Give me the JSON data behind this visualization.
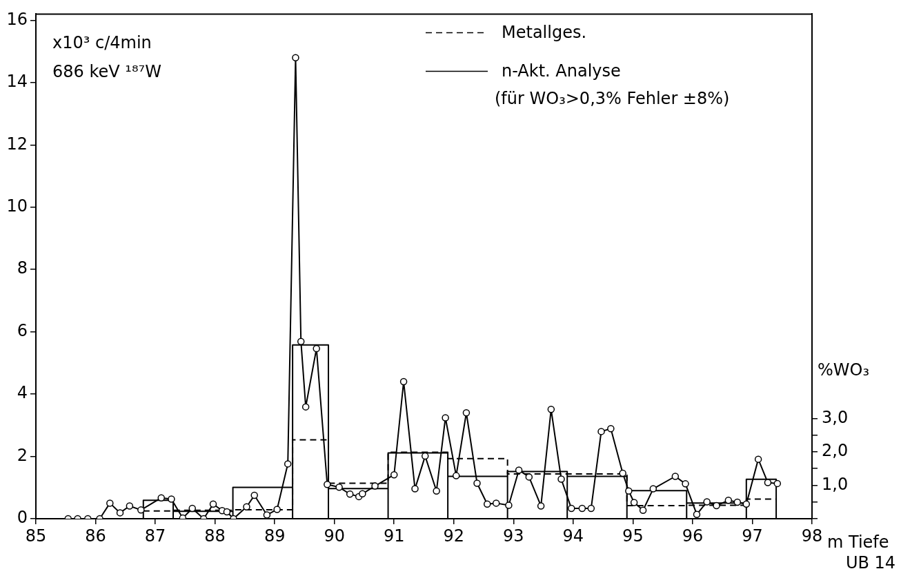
{
  "chart_data": {
    "type": "line",
    "ylabel": "x10³ c/4min",
    "xlabel": "m Tiefe",
    "y2label": "%WO₃",
    "annotations": [
      "686 keV ¹⁸⁷W",
      "(für WO₃>0,3% Fehler ±8%)",
      "UB 14"
    ],
    "xlim": [
      85,
      98
    ],
    "xticks": [
      85,
      86,
      87,
      88,
      89,
      90,
      91,
      92,
      93,
      94,
      95,
      96,
      97,
      98
    ],
    "ylim": [
      0,
      16.2
    ],
    "yticks": [
      0,
      2,
      4,
      6,
      8,
      10,
      12,
      14,
      16
    ],
    "y2lim": [
      0,
      15.1
    ],
    "y2ticks": [
      {
        "value": 0,
        "label": null
      },
      {
        "value": 0.5,
        "label": null
      },
      {
        "value": 1,
        "label": "1,0"
      },
      {
        "value": 1.5,
        "label": null
      },
      {
        "value": 2,
        "label": "2,0"
      },
      {
        "value": 2.5,
        "label": null
      },
      {
        "value": 3,
        "label": "3,0"
      }
    ],
    "grid": false,
    "legend": "top right",
    "series": [
      {
        "color": "#000000",
        "marker": "circle",
        "line_style": "solid",
        "axis": "y",
        "x": [
          85.54,
          85.7,
          85.87,
          86.07,
          86.24,
          86.41,
          86.57,
          86.76,
          87.1,
          87.27,
          87.46,
          87.62,
          87.81,
          87.97,
          88.12,
          88.2,
          88.31,
          88.53,
          88.66,
          88.87,
          89.04,
          89.22,
          89.35,
          89.44,
          89.52,
          89.7,
          89.88,
          90.08,
          90.26,
          90.41,
          90.47,
          90.68,
          91.0,
          91.16,
          91.35,
          91.52,
          91.71,
          91.86,
          92.04,
          92.21,
          92.39,
          92.56,
          92.71,
          92.92,
          93.09,
          93.26,
          93.46,
          93.63,
          93.8,
          93.97,
          94.15,
          94.3,
          94.47,
          94.63,
          94.83,
          94.93,
          95.02,
          95.17,
          95.34,
          95.71,
          95.88,
          96.07,
          96.24,
          96.4,
          96.6,
          96.75,
          96.9,
          97.1,
          97.26,
          97.42
        ],
        "values": [
          0,
          0,
          0,
          0,
          0.5,
          0.19,
          0.41,
          0.28,
          0.67,
          0.63,
          0.02,
          0.33,
          0,
          0.47,
          0.26,
          0.22,
          0,
          0.38,
          0.75,
          0.12,
          0.3,
          1.76,
          14.8,
          5.69,
          3.59,
          5.46,
          1.1,
          1.01,
          0.79,
          0.71,
          0.8,
          1.05,
          1.41,
          4.4,
          0.96,
          2.01,
          0.89,
          3.24,
          1.38,
          3.4,
          1.14,
          0.47,
          0.5,
          0.43,
          1.56,
          1.34,
          0.41,
          3.51,
          1.27,
          0.33,
          0.33,
          0.33,
          2.8,
          2.89,
          1.46,
          0.89,
          0.52,
          0.27,
          0.96,
          1.36,
          1.12,
          0.14,
          0.54,
          0.42,
          0.59,
          0.53,
          0.47,
          1.91,
          1.16,
          1.13
        ]
      },
      {
        "type": "step",
        "name": "Metallges.",
        "color": "#000000",
        "marker": "none",
        "line_style": "dashed",
        "axis": "y2",
        "x": [
          86.8,
          87.3,
          88.3,
          89.3,
          89.9,
          90.9,
          91.9,
          92.9,
          93.9,
          94.9,
          95.9,
          96.9,
          97.4
        ],
        "values": [
          0.23,
          0.25,
          0.27,
          2.36,
          1.06,
          1.99,
          1.8,
          1.34,
          1.34,
          0.39,
          0.4,
          0.59,
          0.59
        ]
      },
      {
        "name": "n-Akt. Analyse",
        "color": "#000000",
        "marker": "none",
        "line_style": "solid",
        "axis": "y2",
        "x": [
          86.8,
          86.8,
          87.3,
          87.3,
          87.3,
          88.3,
          88.3,
          88.3,
          89.3,
          89.3,
          89.3,
          89.9,
          89.9,
          89.9,
          90.9,
          90.9,
          90.9,
          91.9,
          91.9,
          91.9,
          92.9,
          92.9,
          92.9,
          93.9,
          93.9,
          93.9,
          94.9,
          94.9,
          94.9,
          95.9,
          95.9,
          95.9,
          96.9,
          96.9,
          96.9,
          97.4,
          97.4
        ],
        "values": [
          0,
          0.55,
          0.55,
          0,
          0.22,
          0.22,
          0,
          0.94,
          0.94,
          0,
          5.2,
          5.2,
          0,
          0.9,
          0.9,
          0,
          1.97,
          1.97,
          0,
          1.27,
          1.27,
          0,
          1.41,
          1.41,
          0,
          1.27,
          1.27,
          0,
          0.84,
          0.84,
          0,
          0.47,
          0.47,
          0,
          1.18,
          1.18,
          0
        ]
      }
    ]
  }
}
